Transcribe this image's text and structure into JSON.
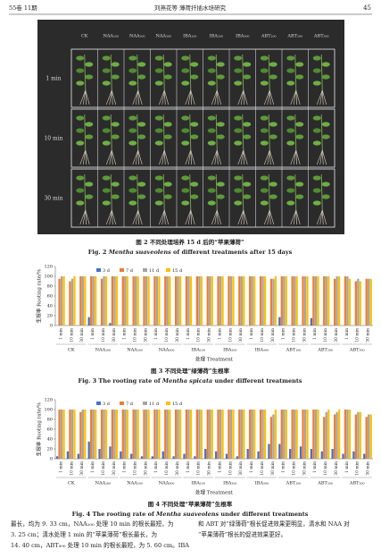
{
  "header": {
    "left": "55卷 11期",
    "center": "刘燕花等  薄荷扦插水培研究",
    "page": "45"
  },
  "figure2": {
    "column_labels": [
      "CK",
      "NAA₁₀₀",
      "NAA₂₀₀",
      "NAA₃₀₀",
      "IBA₁₀₀",
      "IBA₂₀₀",
      "IBA₃₀₀",
      "ABT₁₀₀",
      "ABT₂₀₀",
      "ABT₃₀₀"
    ],
    "row_labels": [
      "1 min",
      "10 min",
      "30 min"
    ],
    "caption_cn": "图 2  不同处理培养 15 d 后的“苹果薄荷”",
    "caption_en": [
      "Fig. 2  ",
      "Mentha suaveolens",
      " of different treatments after 15 days"
    ]
  },
  "chart_data": [
    {
      "type": "bar",
      "ylabel": "生根率 Rooting rate/%",
      "xlabel": "处理 Treatment",
      "categories": [
        "1 min",
        "10 min",
        "30 min",
        "1 min",
        "10 min",
        "30 min",
        "1 min",
        "10 min",
        "30 min",
        "1 min",
        "10 min",
        "30 min",
        "1 min",
        "10 min",
        "30 min",
        "1 min",
        "10 min",
        "30 min",
        "1 min",
        "10 min",
        "30 min",
        "1 min",
        "10 min",
        "30 min",
        "1 min",
        "10 min",
        "30 min",
        "1 min",
        "10 min",
        "30 min"
      ],
      "groups": [
        "CK",
        "NAA₁₀₀",
        "NAA₂₀₀",
        "NAA₃₀₀",
        "IBA₁₀₀",
        "IBA₂₀₀",
        "IBA₃₀₀",
        "ABT₁₀₀",
        "ABT₂₀₀",
        "ABT₃₀₀"
      ],
      "series": [
        {
          "name": "3 d",
          "color": "#4472c4",
          "values": [
            0,
            0,
            0,
            17,
            0,
            5,
            0,
            0,
            0,
            0,
            0,
            0,
            0,
            0,
            0,
            0,
            0,
            0,
            0,
            0,
            0,
            17,
            0,
            0,
            15,
            0,
            0,
            0,
            0,
            0
          ]
        },
        {
          "name": "7 d",
          "color": "#ed7d31",
          "values": [
            95,
            90,
            100,
            100,
            95,
            100,
            100,
            100,
            100,
            100,
            100,
            100,
            100,
            100,
            100,
            100,
            100,
            100,
            100,
            100,
            95,
            100,
            100,
            100,
            100,
            100,
            95,
            100,
            90,
            95
          ]
        },
        {
          "name": "11 d",
          "color": "#a5a5a5",
          "values": [
            100,
            95,
            100,
            100,
            100,
            100,
            100,
            100,
            100,
            100,
            100,
            100,
            100,
            100,
            100,
            100,
            100,
            100,
            100,
            100,
            95,
            100,
            100,
            100,
            100,
            100,
            100,
            100,
            95,
            95
          ]
        },
        {
          "name": "15 d",
          "color": "#ffc000",
          "values": [
            100,
            100,
            100,
            100,
            100,
            100,
            100,
            100,
            100,
            100,
            100,
            100,
            100,
            100,
            100,
            100,
            100,
            100,
            100,
            100,
            100,
            100,
            100,
            100,
            100,
            100,
            100,
            95,
            90,
            95
          ]
        }
      ],
      "ylim": [
        0,
        120
      ],
      "yticks": [
        0,
        20,
        40,
        60,
        80,
        100,
        120
      ],
      "caption_cn": "图 3  不同处理“绿薄荷”生根率",
      "caption_en": [
        "Fig. 3  The rooting rate of ",
        "Mentha spicata",
        " under different treatments"
      ]
    },
    {
      "type": "bar",
      "ylabel": "生根率 Rooting rate/%",
      "xlabel": "处理 Treatment",
      "categories": [
        "1 min",
        "10 min",
        "30 min",
        "1 min",
        "10 min",
        "30 min",
        "1 min",
        "10 min",
        "30 min",
        "1 min",
        "10 min",
        "30 min",
        "1 min",
        "10 min",
        "30 min",
        "1 min",
        "10 min",
        "30 min",
        "1 min",
        "10 min",
        "30 min",
        "1 min",
        "10 min",
        "30 min",
        "1 min",
        "10 min",
        "30 min",
        "1 min",
        "10 min",
        "30 min"
      ],
      "groups": [
        "CK",
        "NAA₁₀₀",
        "NAA₂₀₀",
        "NAA₃₀₀",
        "IBA₁₀₀",
        "IBA₂₀₀",
        "IBA₃₀₀",
        "ABT₁₀₀",
        "ABT₂₀₀",
        "ABT₃₀₀"
      ],
      "series": [
        {
          "name": "3 d",
          "color": "#4472c4",
          "values": [
            5,
            15,
            10,
            35,
            20,
            25,
            15,
            10,
            5,
            5,
            15,
            5,
            10,
            5,
            20,
            15,
            10,
            5,
            20,
            15,
            30,
            30,
            20,
            25,
            20,
            15,
            20,
            10,
            15,
            10
          ]
        },
        {
          "name": "7 d",
          "color": "#ed7d31",
          "values": [
            100,
            100,
            95,
            100,
            100,
            100,
            100,
            100,
            100,
            100,
            100,
            100,
            100,
            100,
            100,
            100,
            100,
            100,
            100,
            100,
            85,
            100,
            100,
            100,
            100,
            85,
            90,
            100,
            90,
            85
          ]
        },
        {
          "name": "11 d",
          "color": "#a5a5a5",
          "values": [
            100,
            100,
            100,
            100,
            100,
            100,
            100,
            100,
            100,
            100,
            100,
            100,
            100,
            100,
            100,
            100,
            100,
            100,
            100,
            100,
            90,
            100,
            100,
            100,
            100,
            95,
            95,
            100,
            95,
            90
          ]
        },
        {
          "name": "15 d",
          "color": "#ffc000",
          "values": [
            100,
            100,
            100,
            100,
            100,
            100,
            100,
            100,
            100,
            100,
            100,
            100,
            100,
            100,
            100,
            100,
            100,
            100,
            100,
            100,
            100,
            100,
            100,
            100,
            100,
            100,
            100,
            100,
            95,
            90
          ]
        }
      ],
      "ylim": [
        0,
        120
      ],
      "yticks": [
        0,
        20,
        40,
        60,
        80,
        100,
        120
      ],
      "caption_cn": "图 4  不同处理“苹果薄荷”生根率",
      "caption_en": [
        "Fig. 4  The rooting rate of ",
        "Mentha suaveolens",
        " under different treatments"
      ]
    }
  ],
  "body": {
    "left": [
      "最长，均为 9. 33 cm，NAA₁₀₀ 处理 10 min 的根长最短，为",
      "3. 25 cm；清水处理 1 min 的“苹果薄荷”根长最长，为",
      "14. 40 cm，ABT₃₀₀ 处理 10 min 的根长最短，为 5. 60 cm。IBA"
    ],
    "right": [
      "和 ABT 对“绿薄荷”根长促进效果更明显，清水和 NAA 对",
      "“苹果薄荷”根长的促进效果更好。"
    ]
  }
}
